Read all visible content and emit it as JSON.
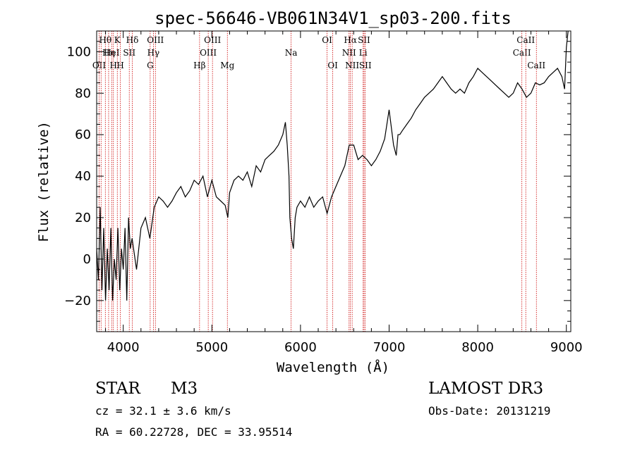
{
  "chart_data": {
    "type": "line",
    "title": "spec-56646-VB061N34V1_sp03-200.fits",
    "xlabel": "Wavelength (Å)",
    "ylabel": "Flux (relative)",
    "xlim": [
      3700,
      9050
    ],
    "ylim": [
      -35,
      110
    ],
    "xticks": [
      4000,
      5000,
      6000,
      7000,
      8000,
      9000
    ],
    "yticks": [
      -20,
      0,
      20,
      40,
      60,
      80,
      100
    ],
    "line_color": "#000000",
    "marker_color": "#cc0000",
    "series": [
      {
        "x": [
          3700,
          3720,
          3740,
          3760,
          3780,
          3800,
          3820,
          3840,
          3860,
          3880,
          3900,
          3920,
          3940,
          3960,
          3980,
          4000,
          4020,
          4040,
          4060,
          4080,
          4100,
          4150,
          4200,
          4250,
          4300,
          4350,
          4400,
          4450,
          4500,
          4550,
          4600,
          4650,
          4700,
          4750,
          4800,
          4850,
          4900,
          4950,
          5000,
          5050,
          5100,
          5150,
          5180,
          5200,
          5250,
          5300,
          5350,
          5400,
          5450,
          5500,
          5550,
          5600,
          5650,
          5700,
          5750,
          5800,
          5830,
          5850,
          5870,
          5880,
          5900,
          5920,
          5940,
          5960,
          6000,
          6050,
          6100,
          6150,
          6200,
          6250,
          6300,
          6350,
          6400,
          6450,
          6500,
          6550,
          6600,
          6650,
          6700,
          6750,
          6800,
          6850,
          6900,
          6950,
          7000,
          7050,
          7080,
          7100,
          7120,
          7150,
          7200,
          7250,
          7300,
          7350,
          7400,
          7450,
          7500,
          7550,
          7600,
          7650,
          7700,
          7750,
          7800,
          7850,
          7900,
          7950,
          8000,
          8050,
          8100,
          8150,
          8200,
          8250,
          8300,
          8350,
          8400,
          8450,
          8500,
          8550,
          8600,
          8650,
          8700,
          8750,
          8800,
          8850,
          8900,
          8950,
          8980,
          9000,
          9020
        ],
        "y": [
          5,
          -10,
          25,
          -15,
          15,
          -20,
          5,
          -15,
          15,
          -20,
          0,
          -10,
          15,
          -15,
          5,
          -5,
          15,
          -20,
          20,
          5,
          10,
          -5,
          15,
          20,
          10,
          25,
          30,
          28,
          25,
          28,
          32,
          35,
          30,
          33,
          38,
          36,
          40,
          30,
          38,
          30,
          28,
          26,
          20,
          32,
          38,
          40,
          38,
          42,
          35,
          45,
          42,
          48,
          50,
          52,
          55,
          60,
          66,
          55,
          40,
          20,
          10,
          5,
          20,
          25,
          28,
          25,
          30,
          25,
          28,
          30,
          22,
          30,
          35,
          40,
          45,
          55,
          55,
          48,
          50,
          48,
          45,
          48,
          52,
          58,
          72,
          55,
          50,
          60,
          60,
          62,
          65,
          68,
          72,
          75,
          78,
          80,
          82,
          85,
          88,
          85,
          82,
          80,
          82,
          80,
          85,
          88,
          92,
          90,
          88,
          86,
          84,
          82,
          80,
          78,
          80,
          85,
          82,
          78,
          80,
          85,
          84,
          85,
          88,
          90,
          92,
          88,
          82,
          102,
          110
        ]
      }
    ],
    "line_markers": [
      {
        "wl": 3728,
        "labels": [
          {
            "t": "OII",
            "row": 3
          }
        ]
      },
      {
        "wl": 3750,
        "labels": []
      },
      {
        "wl": 3798,
        "labels": [
          {
            "t": "Hθ",
            "row": 1
          }
        ]
      },
      {
        "wl": 3835,
        "labels": [
          {
            "t": "Hη",
            "row": 2
          }
        ]
      },
      {
        "wl": 3870,
        "labels": [
          {
            "t": "HeI",
            "row": 2
          }
        ]
      },
      {
        "wl": 3889,
        "labels": [
          {
            "t": "H",
            "row": 3
          }
        ]
      },
      {
        "wl": 3933,
        "labels": [
          {
            "t": "K",
            "row": 1
          }
        ]
      },
      {
        "wl": 3968,
        "labels": [
          {
            "t": "H",
            "row": 3
          }
        ]
      },
      {
        "wl": 4068,
        "labels": [
          {
            "t": "SII",
            "row": 2
          }
        ]
      },
      {
        "wl": 4102,
        "labels": [
          {
            "t": "Hδ",
            "row": 1
          }
        ]
      },
      {
        "wl": 4304,
        "labels": [
          {
            "t": "G",
            "row": 3
          }
        ]
      },
      {
        "wl": 4340,
        "labels": [
          {
            "t": "Hγ",
            "row": 2
          }
        ]
      },
      {
        "wl": 4363,
        "labels": [
          {
            "t": "OIII",
            "row": 1
          }
        ]
      },
      {
        "wl": 4861,
        "labels": [
          {
            "t": "Hβ",
            "row": 3
          }
        ]
      },
      {
        "wl": 4959,
        "labels": [
          {
            "t": "OIII",
            "row": 2
          }
        ]
      },
      {
        "wl": 5007,
        "labels": [
          {
            "t": "OIII",
            "row": 1
          }
        ]
      },
      {
        "wl": 5175,
        "labels": [
          {
            "t": "Mg",
            "row": 3
          }
        ]
      },
      {
        "wl": 5894,
        "labels": [
          {
            "t": "Na",
            "row": 2
          }
        ]
      },
      {
        "wl": 6300,
        "labels": [
          {
            "t": "OI",
            "row": 1
          }
        ]
      },
      {
        "wl": 6364,
        "labels": [
          {
            "t": "OI",
            "row": 3
          }
        ]
      },
      {
        "wl": 6548,
        "labels": [
          {
            "t": "NII",
            "row": 2
          }
        ]
      },
      {
        "wl": 6563,
        "labels": [
          {
            "t": "Hα",
            "row": 1
          }
        ]
      },
      {
        "wl": 6583,
        "labels": [
          {
            "t": "NII",
            "row": 3
          }
        ]
      },
      {
        "wl": 6707,
        "labels": [
          {
            "t": "Li",
            "row": 2
          }
        ]
      },
      {
        "wl": 6717,
        "labels": [
          {
            "t": "SII",
            "row": 1
          }
        ]
      },
      {
        "wl": 6731,
        "labels": [
          {
            "t": "SII",
            "row": 3
          }
        ]
      },
      {
        "wl": 8498,
        "labels": [
          {
            "t": "CaII",
            "row": 2
          }
        ]
      },
      {
        "wl": 8542,
        "labels": [
          {
            "t": "CaII",
            "row": 1
          }
        ]
      },
      {
        "wl": 8662,
        "labels": [
          {
            "t": "CaII",
            "row": 3
          }
        ]
      }
    ]
  },
  "info": {
    "class_label": "STAR",
    "subclass": "M3",
    "survey": "LAMOST DR3",
    "cz": "cz = 32.1 ± 3.6 km/s",
    "obs_date": "Obs-Date: 20131219",
    "coords": "RA =  60.22728, DEC =  33.95514"
  }
}
